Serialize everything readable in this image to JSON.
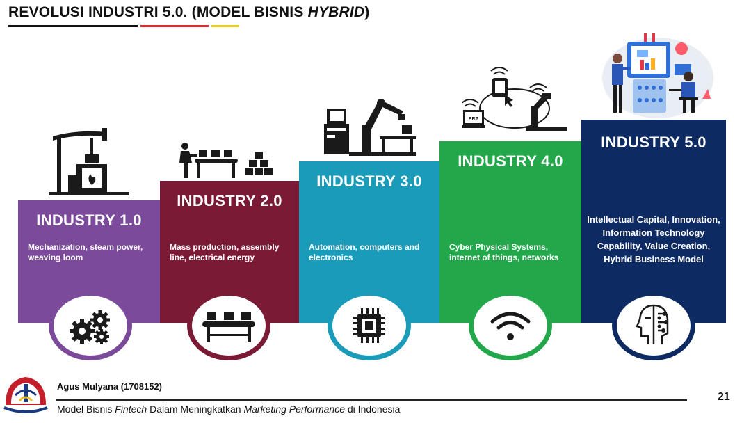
{
  "title": {
    "prefix": "REVOLUSI INDUSTRI 5.0. (MODEL BISNIS ",
    "italic": "HYBRID",
    "suffix": ")"
  },
  "industries": [
    {
      "label": "INDUSTRY 1.0",
      "description": "Mechanization, steam power, weaving loom",
      "color": "#7b4a9a",
      "icon": "gears-icon"
    },
    {
      "label": "INDUSTRY 2.0",
      "description": "Mass production, assembly line, electrical energy",
      "color": "#7a1a35",
      "icon": "assembly-line-icon"
    },
    {
      "label": "INDUSTRY 3.0",
      "description": "Automation, computers and electronics",
      "color": "#1a9bb9",
      "icon": "chip-icon"
    },
    {
      "label": "INDUSTRY 4.0",
      "description": "Cyber Physical Systems, internet of things, networks",
      "color": "#22a84a",
      "icon": "wifi-icon"
    },
    {
      "label": "INDUSTRY 5.0",
      "description": "Intellectual Capital, Innovation, Information Technology Capability, Value Creation, Hybrid Business Model",
      "color": "#0e2a63",
      "icon": "human-robot-icon"
    }
  ],
  "illustration_labels": {
    "erp": "ERP"
  },
  "footer": {
    "author": "Agus Mulyana (1708152)",
    "subtitle_part1": "Model Bisnis ",
    "subtitle_italic1": "Fintech",
    "subtitle_part2": " Dalam Meningkatkan ",
    "subtitle_italic2": "Marketing Performance",
    "subtitle_part3": " di Indonesia",
    "page_number": "21"
  }
}
